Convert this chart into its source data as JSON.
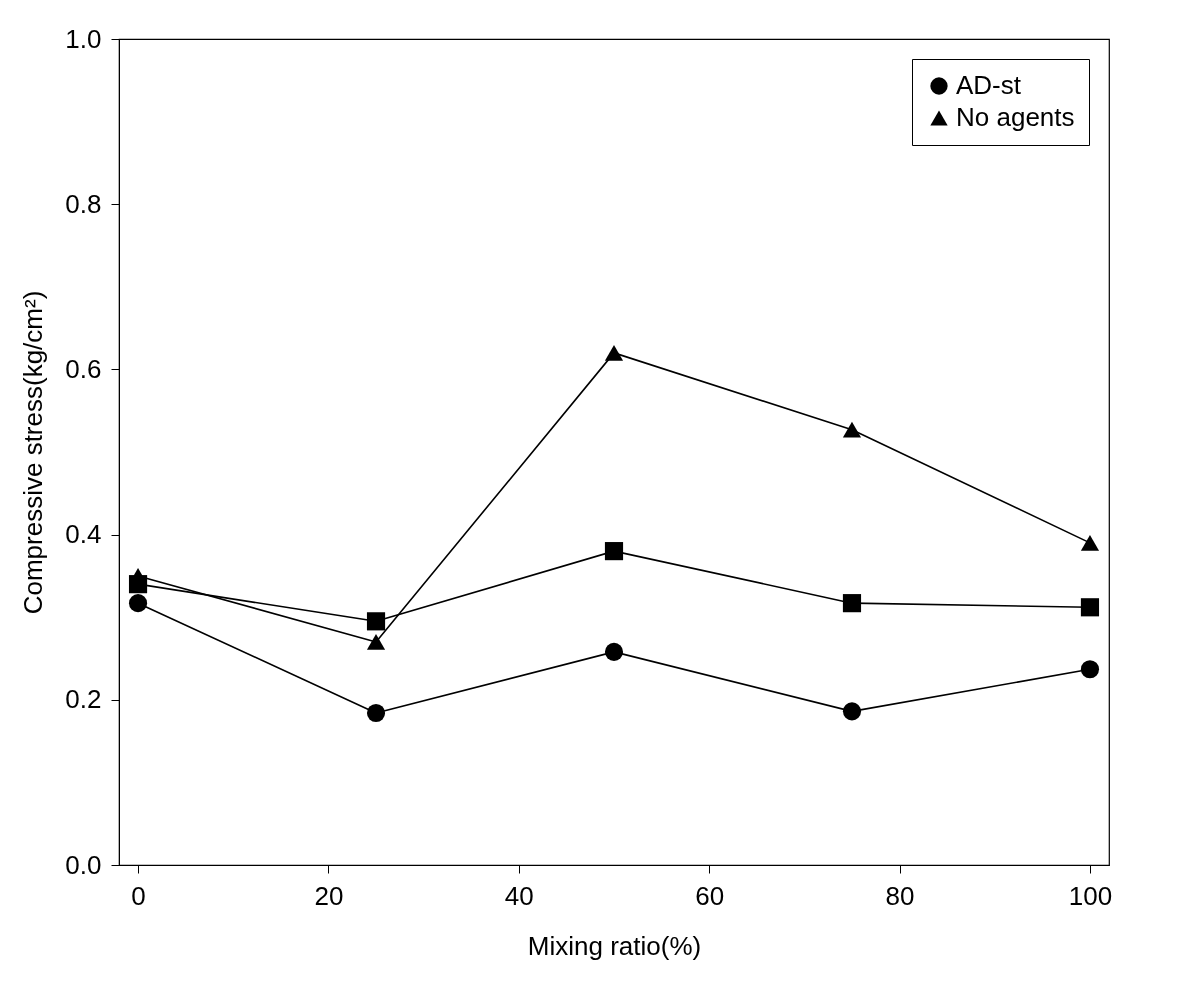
{
  "chart_data": {
    "type": "line",
    "xlabel": "Mixing ratio(%)",
    "ylabel": "Compressive stress(kg/cm²)",
    "x": [
      0,
      25,
      50,
      75,
      100
    ],
    "series": [
      {
        "name": "AD-st",
        "color": "#000000",
        "marker": "circle",
        "values": [
          0.317,
          0.184,
          0.258,
          0.186,
          0.237
        ]
      },
      {
        "color": "#000000",
        "marker": "square",
        "values": [
          0.34,
          0.295,
          0.38,
          0.317,
          0.312
        ]
      },
      {
        "name": "No agents",
        "color": "#000000",
        "marker": "triangle",
        "values": [
          0.35,
          0.27,
          0.62,
          0.527,
          0.39
        ]
      }
    ],
    "xlim": [
      -2,
      102
    ],
    "xticks": [
      0,
      20,
      40,
      60,
      80,
      100
    ],
    "ylim": [
      0,
      1
    ],
    "yticks": [
      {
        "value": 0,
        "label": "0.0"
      },
      {
        "value": 0.2,
        "label": "0.2"
      },
      {
        "value": 0.4,
        "label": "0.4"
      },
      {
        "value": 0.6,
        "label": "0.6"
      },
      {
        "value": 0.8,
        "label": "0.8"
      },
      {
        "value": 1,
        "label": "1.0"
      }
    ],
    "grid": false,
    "legend": "top right",
    "line_style": "solid"
  }
}
